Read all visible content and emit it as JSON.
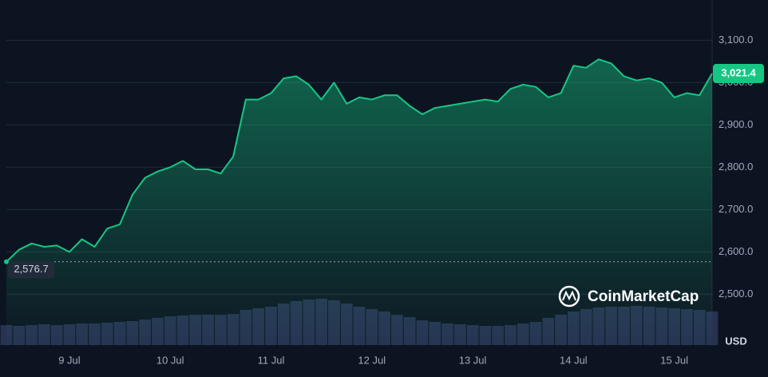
{
  "chart_data": {
    "type": "line",
    "categories": [
      null,
      null,
      null,
      null,
      null,
      "9 Jul",
      null,
      null,
      null,
      null,
      null,
      null,
      null,
      "10 Jul",
      null,
      null,
      null,
      null,
      null,
      null,
      null,
      "11 Jul",
      null,
      null,
      null,
      null,
      null,
      null,
      null,
      "12 Jul",
      null,
      null,
      null,
      null,
      null,
      null,
      null,
      "13 Jul",
      null,
      null,
      null,
      null,
      null,
      null,
      null,
      "14 Jul",
      null,
      null,
      null,
      null,
      null,
      null,
      null,
      "15 Jul",
      null,
      null,
      null
    ],
    "values": [
      2576.7,
      2605,
      2620,
      2612,
      2615,
      2600,
      2630,
      2612,
      2655,
      2665,
      2735,
      2775,
      2790,
      2800,
      2815,
      2795,
      2795,
      2785,
      2825,
      2960,
      2960,
      2975,
      3010,
      3015,
      2995,
      2960,
      3000,
      2950,
      2965,
      2960,
      2970,
      2970,
      2945,
      2925,
      2940,
      2945,
      2950,
      2955,
      2960,
      2955,
      2985,
      2995,
      2990,
      2965,
      2975,
      3040,
      3035,
      3055,
      3045,
      3015,
      3005,
      3010,
      3000,
      2965,
      2975,
      2970,
      3021.4
    ],
    "value_labels": [
      "2,576.7",
      null,
      null,
      null,
      null,
      null,
      null,
      null,
      null,
      null,
      null,
      null,
      null,
      null,
      null,
      null,
      null,
      null,
      null,
      null,
      null,
      null,
      null,
      null,
      null,
      null,
      null,
      null,
      null,
      null,
      null,
      null,
      null,
      null,
      null,
      null,
      null,
      null,
      null,
      null,
      null,
      null,
      null,
      null,
      null,
      null,
      null,
      null,
      null,
      null,
      null,
      null,
      null,
      null,
      null,
      null,
      "3,021.4"
    ],
    "volume": [
      25,
      24,
      25,
      26,
      25,
      26,
      27,
      27,
      28,
      29,
      30,
      32,
      34,
      36,
      37,
      38,
      38,
      38,
      39,
      44,
      46,
      48,
      52,
      55,
      57,
      58,
      56,
      52,
      48,
      45,
      42,
      38,
      35,
      31,
      29,
      27,
      26,
      25,
      24,
      24,
      25,
      27,
      29,
      34,
      38,
      42,
      45,
      47,
      48,
      48,
      49,
      48,
      47,
      46,
      45,
      44,
      42
    ],
    "color": "#16c784",
    "ylim": [
      2380,
      3195
    ],
    "yticks": [
      {
        "value": 2500,
        "label": "2,500.0"
      },
      {
        "value": 2600,
        "label": "2,600.0"
      },
      {
        "value": 2700,
        "label": "2,700.0"
      },
      {
        "value": 2800,
        "label": "2,800.0"
      },
      {
        "value": 2900,
        "label": "2,900.0"
      },
      {
        "value": 3000,
        "label": "3,000.0"
      },
      {
        "value": 3100,
        "label": "3,100.0"
      }
    ],
    "grid": true,
    "y_unit": "USD",
    "watermark": "CoinMarketCap"
  }
}
